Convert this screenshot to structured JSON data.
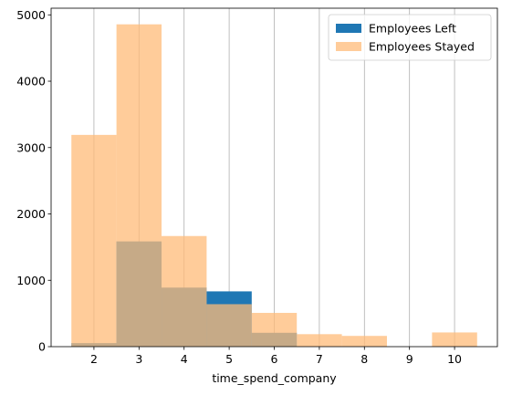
{
  "chart_data": {
    "type": "bar",
    "xlabel": "time_spend_company",
    "ylabel": "",
    "x_ticks": [
      "2",
      "3",
      "4",
      "5",
      "6",
      "7",
      "8",
      "9",
      "10"
    ],
    "y_ticks": [
      "0",
      "1000",
      "2000",
      "3000",
      "4000",
      "5000"
    ],
    "xlim": [
      1.05,
      10.95
    ],
    "ylim": [
      0,
      5100
    ],
    "grid": "vertical",
    "legend_position": "top-right",
    "bins": [
      {
        "x_start": 1.5,
        "x_end": 2.5
      },
      {
        "x_start": 2.5,
        "x_end": 3.5
      },
      {
        "x_start": 3.5,
        "x_end": 4.5
      },
      {
        "x_start": 4.5,
        "x_end": 5.5
      },
      {
        "x_start": 5.5,
        "x_end": 6.5
      },
      {
        "x_start": 6.5,
        "x_end": 7.5
      },
      {
        "x_start": 7.5,
        "x_end": 8.5
      },
      {
        "x_start": 8.5,
        "x_end": 9.5
      },
      {
        "x_start": 9.5,
        "x_end": 10.5
      }
    ],
    "series": [
      {
        "name": "Employees Left",
        "color": "#1f77b4",
        "opacity": 1.0,
        "values": [
          53,
          1586,
          890,
          833,
          209,
          0,
          0,
          0,
          0
        ]
      },
      {
        "name": "Employees Stayed",
        "color": "#ffbb78",
        "opacity": 0.75,
        "values": [
          3191,
          4857,
          1667,
          640,
          509,
          188,
          162,
          0,
          214
        ]
      }
    ]
  }
}
